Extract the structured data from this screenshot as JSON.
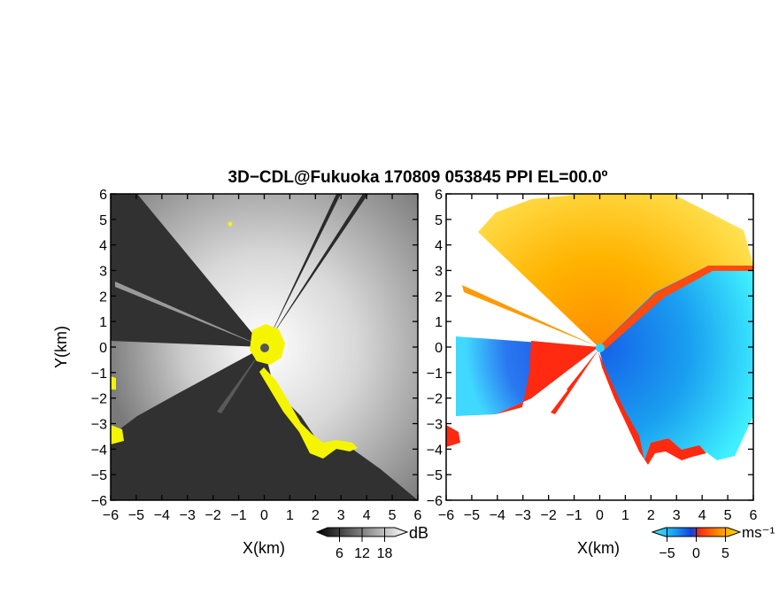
{
  "chart_data": {
    "title": "3D−CDL@Fukuoka 170809 053845 PPI EL=00.0º",
    "panels": [
      {
        "id": "reflectivity",
        "type": "heatmap",
        "xlabel": "X(km)",
        "ylabel": "Y(km)",
        "xlim": [
          -6,
          6
        ],
        "ylim": [
          -6,
          6
        ],
        "xticks": [
          "−6",
          "−5",
          "−4",
          "−3",
          "−2",
          "−1",
          "0",
          "1",
          "2",
          "3",
          "4",
          "5",
          "6"
        ],
        "yticks": [
          "−6",
          "−5",
          "−4",
          "−3",
          "−2",
          "−1",
          "0",
          "1",
          "2",
          "3",
          "4",
          "5",
          "6"
        ],
        "colormap": "grayscale",
        "flag_color": "#ffff00",
        "background": "#303030",
        "colorbar": {
          "unit": "dB",
          "ticks": [
            "6",
            "12",
            "18"
          ],
          "range": [
            0,
            24
          ]
        }
      },
      {
        "id": "velocity",
        "type": "heatmap",
        "xlabel": "X(km)",
        "xlim": [
          -6,
          6
        ],
        "ylim": [
          -6,
          6
        ],
        "xticks": [
          "−6",
          "−5",
          "−4",
          "−3",
          "−2",
          "−1",
          "0",
          "1",
          "2",
          "3",
          "4",
          "5",
          "6"
        ],
        "yticks": [
          "−6",
          "−5",
          "−4",
          "−3",
          "−2",
          "−1",
          "0",
          "1",
          "2",
          "3",
          "4",
          "5",
          "6"
        ],
        "colormap": "cyan-blue-red-orange-yellow",
        "background": "#ffffff",
        "colorbar": {
          "unit": "ms⁻¹",
          "ticks": [
            "−5",
            "0",
            "5"
          ],
          "range": [
            -7.5,
            7.5
          ]
        }
      }
    ]
  }
}
